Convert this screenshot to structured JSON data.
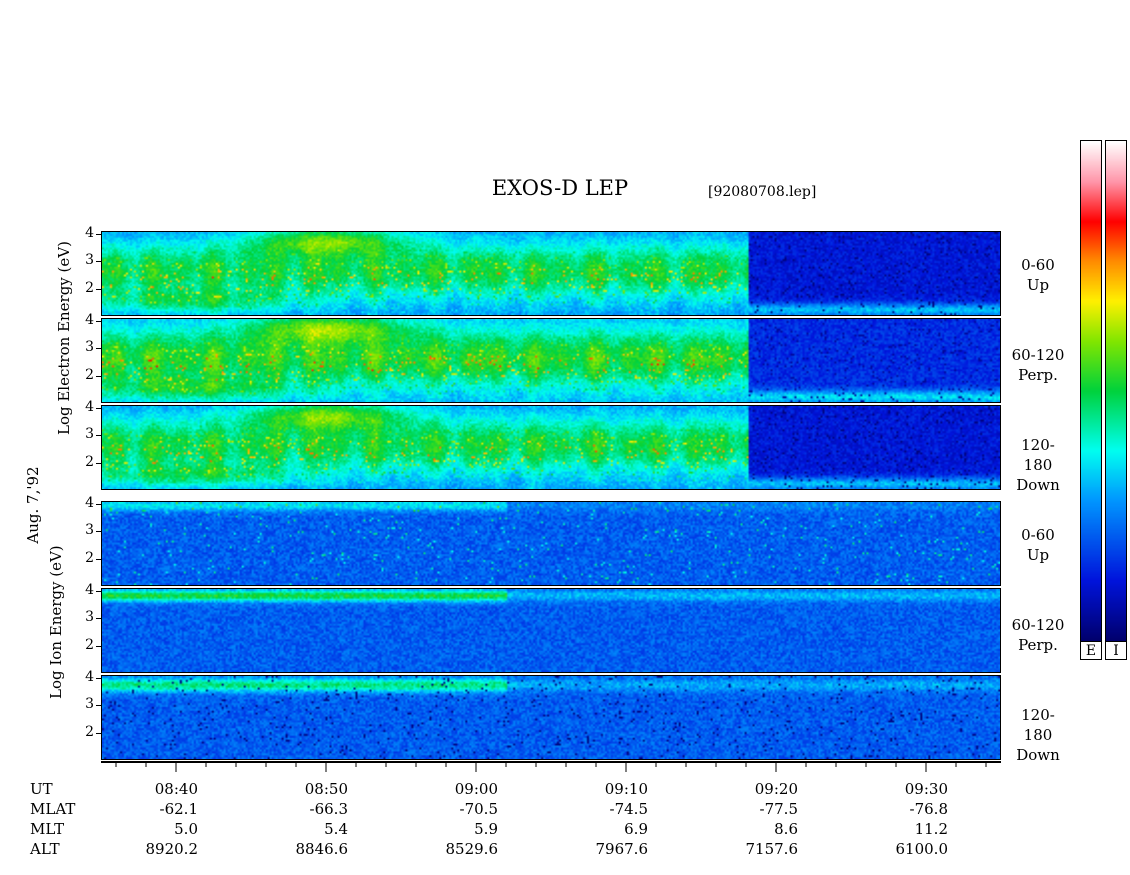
{
  "title": "EXOS-D LEP",
  "file_label": "[92080708.lep]",
  "date_label": "Aug. 7,'92",
  "chart_data": {
    "type": "heatmap",
    "x_axis": {
      "label": "UT",
      "range": [
        "08:35",
        "09:35"
      ],
      "major_ticks": [
        "08:40",
        "08:50",
        "09:00",
        "09:10",
        "09:20",
        "09:30"
      ],
      "minor_tick_minutes": 2
    },
    "y_range": [
      1,
      4.1
    ],
    "y_ticks": [
      "4",
      "3",
      "2"
    ],
    "groups": [
      {
        "name": "Electron",
        "ylabel": "Log Electron Energy (eV)",
        "ylabel_parts": [
          "Log",
          "Electron",
          "Energy",
          "(eV)"
        ],
        "panels": [
          {
            "label": [
              "0-60",
              "Up"
            ]
          },
          {
            "label": [
              "60-120",
              "Perp."
            ]
          },
          {
            "label": [
              "120-180",
              "Down"
            ]
          }
        ]
      },
      {
        "name": "Ion",
        "ylabel": "Log Ion Energy (eV)",
        "ylabel_parts": [
          "Log",
          "Ion",
          "Energy",
          "(eV)"
        ],
        "panels": [
          {
            "label": [
              "0-60",
              "Up"
            ]
          },
          {
            "label": [
              "60-120",
              "Perp."
            ]
          },
          {
            "label": [
              "120-180",
              "Down"
            ]
          }
        ]
      }
    ],
    "ephemeris": {
      "rows": [
        {
          "name": "UT",
          "values": [
            "08:40",
            "08:50",
            "09:00",
            "09:10",
            "09:20",
            "09:30"
          ]
        },
        {
          "name": "MLAT",
          "values": [
            "-62.1",
            "-66.3",
            "-70.5",
            "-74.5",
            "-77.5",
            "-76.8"
          ]
        },
        {
          "name": "MLT",
          "values": [
            "5.0",
            "5.4",
            "5.9",
            "6.9",
            "8.6",
            "11.2"
          ]
        },
        {
          "name": "ALT",
          "values": [
            "8920.2",
            "8846.6",
            "8529.6",
            "7967.6",
            "7157.6",
            "6100.0"
          ]
        }
      ]
    },
    "colorbars": [
      {
        "label": "E",
        "scale": [
          "navy",
          "blue",
          "cyan",
          "green",
          "yellow",
          "orange",
          "red",
          "pink",
          "white"
        ]
      },
      {
        "label": "I",
        "scale": [
          "navy",
          "blue",
          "cyan",
          "green",
          "yellow",
          "orange",
          "red",
          "pink",
          "white"
        ]
      }
    ]
  }
}
